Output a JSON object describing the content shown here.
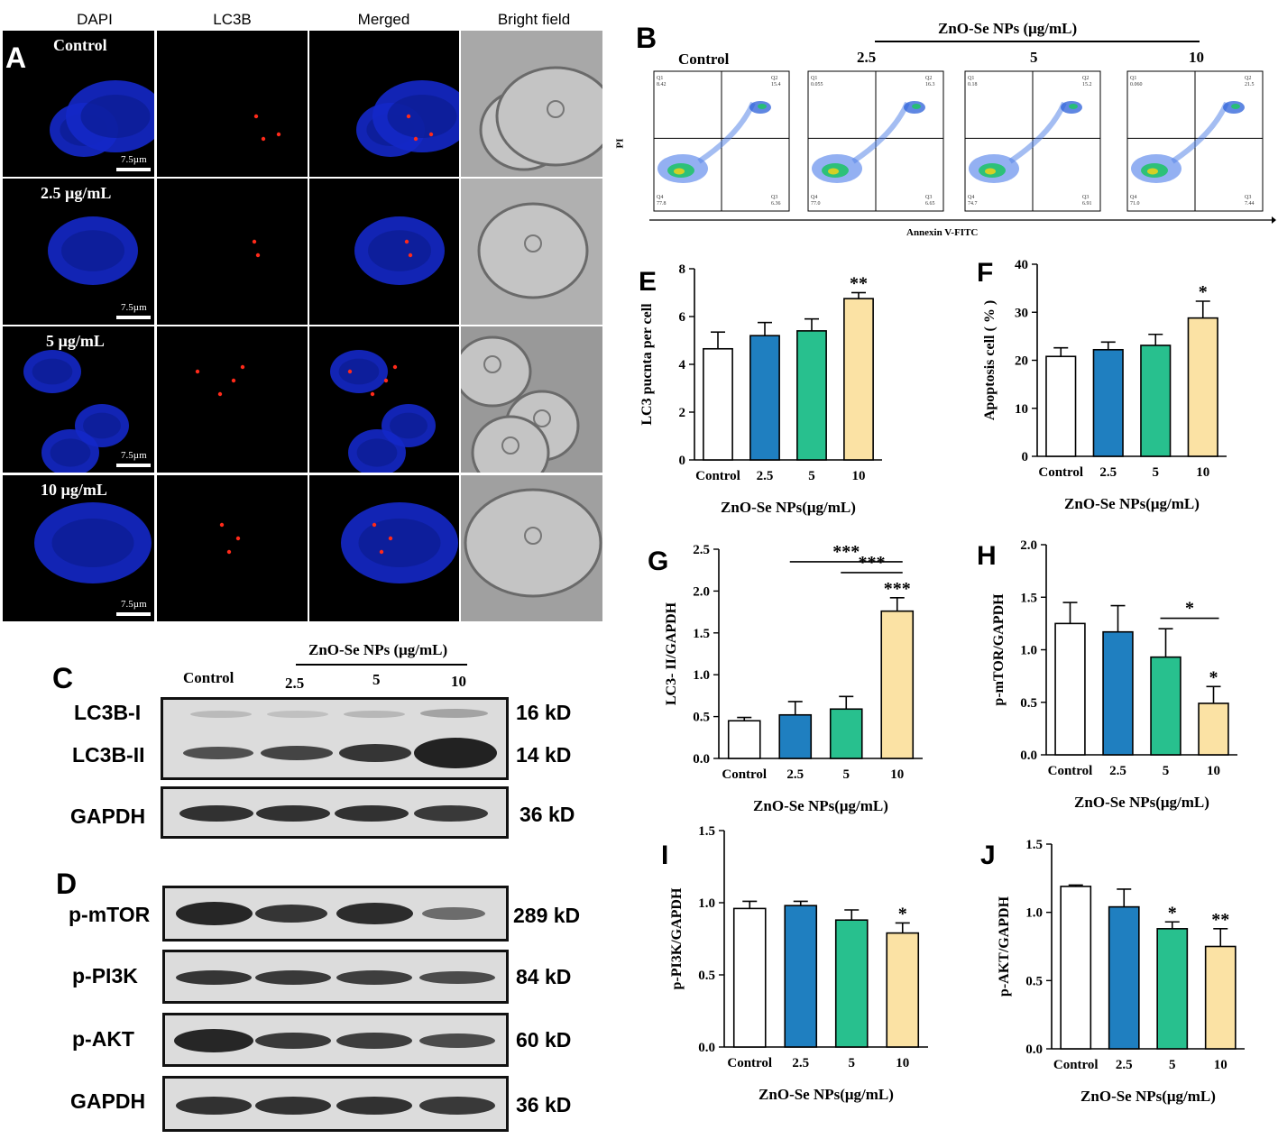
{
  "panelA": {
    "letter": "A",
    "channels": [
      "DAPI",
      "LC3B",
      "Merged",
      "Bright field"
    ],
    "rows": [
      "Control",
      "2.5 µg/mL",
      "5 µg/mL",
      "10 µg/mL"
    ],
    "scale_label": "7.5µm"
  },
  "panelB": {
    "letter": "B",
    "header": "ZnO-Se NPs (μg/mL)",
    "groups": [
      "Control",
      "2.5",
      "5",
      "10"
    ],
    "yaxis": "PI",
    "xaxis": "Annexin V-FITC",
    "quadrants": [
      {
        "q1": "8.42",
        "q2": "15.4",
        "q3": "6.36",
        "q4": "77.8"
      },
      {
        "q1": "0.055",
        "q2": "16.3",
        "q3": "6.65",
        "q4": "77.0"
      },
      {
        "q1": "0.18",
        "q2": "15.2",
        "q3": "6.91",
        "q4": "74.7"
      },
      {
        "q1": "0.060",
        "q2": "21.5",
        "q3": "7.44",
        "q4": "71.0"
      }
    ]
  },
  "panelC": {
    "letter": "C",
    "header": "ZnO-Se NPs (μg/mL)",
    "lanes": [
      "Control",
      "2.5",
      "5",
      "10"
    ],
    "rows": [
      {
        "label": "LC3B-I",
        "kd": "16 kD"
      },
      {
        "label": "LC3B-II",
        "kd": "14 kD"
      },
      {
        "label": "GAPDH",
        "kd": "36 kD"
      }
    ]
  },
  "panelD": {
    "letter": "D",
    "rows": [
      {
        "label": "p-mTOR",
        "kd": "289 kD"
      },
      {
        "label": "p-PI3K",
        "kd": "84 kD"
      },
      {
        "label": "p-AKT",
        "kd": "60 kD"
      },
      {
        "label": "GAPDH",
        "kd": "36 kD"
      }
    ]
  },
  "colors": {
    "control": "#ffffff",
    "c2_5": "#1f7fc0",
    "c5": "#28c08e",
    "c10": "#fbe2a4"
  },
  "chart_data": [
    {
      "id": "E",
      "type": "bar",
      "categories": [
        "Control",
        "2.5",
        "5",
        "10"
      ],
      "values": [
        4.65,
        5.2,
        5.4,
        6.75
      ],
      "errors": [
        0.7,
        0.55,
        0.5,
        0.25
      ],
      "ylim": [
        0,
        8
      ],
      "yticks": [
        0,
        2,
        4,
        6,
        8
      ],
      "ylabel": "LC3 pucnta per cell",
      "xlabel": "ZnO-Se NPs(μg/mL)",
      "sig": [
        "",
        "",
        "",
        "**"
      ],
      "brackets": []
    },
    {
      "id": "F",
      "type": "bar",
      "categories": [
        "Control",
        "2.5",
        "5",
        "10"
      ],
      "values": [
        20.8,
        22.2,
        23.1,
        28.8
      ],
      "errors": [
        1.8,
        1.6,
        2.3,
        3.5
      ],
      "ylim": [
        0,
        40
      ],
      "yticks": [
        0,
        10,
        20,
        30,
        40
      ],
      "ylabel": "Apoptosis cell ( % )",
      "xlabel": "ZnO-Se NPs(μg/mL)",
      "sig": [
        "",
        "",
        "",
        "*"
      ],
      "brackets": []
    },
    {
      "id": "G",
      "type": "bar",
      "categories": [
        "Control",
        "2.5",
        "5",
        "10"
      ],
      "values": [
        0.45,
        0.52,
        0.59,
        1.76
      ],
      "errors": [
        0.04,
        0.16,
        0.15,
        0.16
      ],
      "ylim": [
        0,
        2.5
      ],
      "yticks": [
        0.0,
        0.5,
        1.0,
        1.5,
        2.0,
        2.5
      ],
      "ylabel": "LC3- II/GAPDH",
      "xlabel": "ZnO-Se NPs(μg/mL)",
      "sig": [
        "",
        "",
        "",
        "***"
      ],
      "brackets": [
        {
          "from": 1,
          "to": 3,
          "label": "***",
          "level": 2.35
        },
        {
          "from": 2,
          "to": 3,
          "label": "***",
          "level": 2.22
        }
      ]
    },
    {
      "id": "H",
      "type": "bar",
      "categories": [
        "Control",
        "2.5",
        "5",
        "10"
      ],
      "values": [
        1.25,
        1.17,
        0.93,
        0.49
      ],
      "errors": [
        0.2,
        0.25,
        0.27,
        0.16
      ],
      "ylim": [
        0,
        2.0
      ],
      "yticks": [
        0.0,
        0.5,
        1.0,
        1.5,
        2.0
      ],
      "ylabel": "p-mTOR/GAPDH",
      "xlabel": "ZnO-Se NPs(μg/mL)",
      "sig": [
        "",
        "",
        "",
        "*"
      ],
      "brackets": [
        {
          "from": 2,
          "to": 3,
          "label": "*",
          "level": 1.3
        }
      ]
    },
    {
      "id": "I",
      "type": "bar",
      "categories": [
        "Control",
        "2.5",
        "5",
        "10"
      ],
      "values": [
        0.96,
        0.98,
        0.88,
        0.79
      ],
      "errors": [
        0.05,
        0.03,
        0.07,
        0.07
      ],
      "ylim": [
        0,
        1.5
      ],
      "yticks": [
        0.0,
        0.5,
        1.0,
        1.5
      ],
      "ylabel": "p-PI3K/GAPDH",
      "xlabel": "ZnO-Se NPs(μg/mL)",
      "sig": [
        "",
        "",
        "",
        "*"
      ],
      "brackets": []
    },
    {
      "id": "J",
      "type": "bar",
      "categories": [
        "Control",
        "2.5",
        "5",
        "10"
      ],
      "values": [
        1.19,
        1.04,
        0.88,
        0.75
      ],
      "errors": [
        0.01,
        0.13,
        0.05,
        0.13
      ],
      "ylim": [
        0,
        1.5
      ],
      "yticks": [
        0.0,
        0.5,
        1.0,
        1.5
      ],
      "ylabel": "p-AKT/GAPDH",
      "xlabel": "ZnO-Se NPs(μg/mL)",
      "sig": [
        "",
        "",
        "*",
        "**"
      ],
      "brackets": []
    }
  ]
}
